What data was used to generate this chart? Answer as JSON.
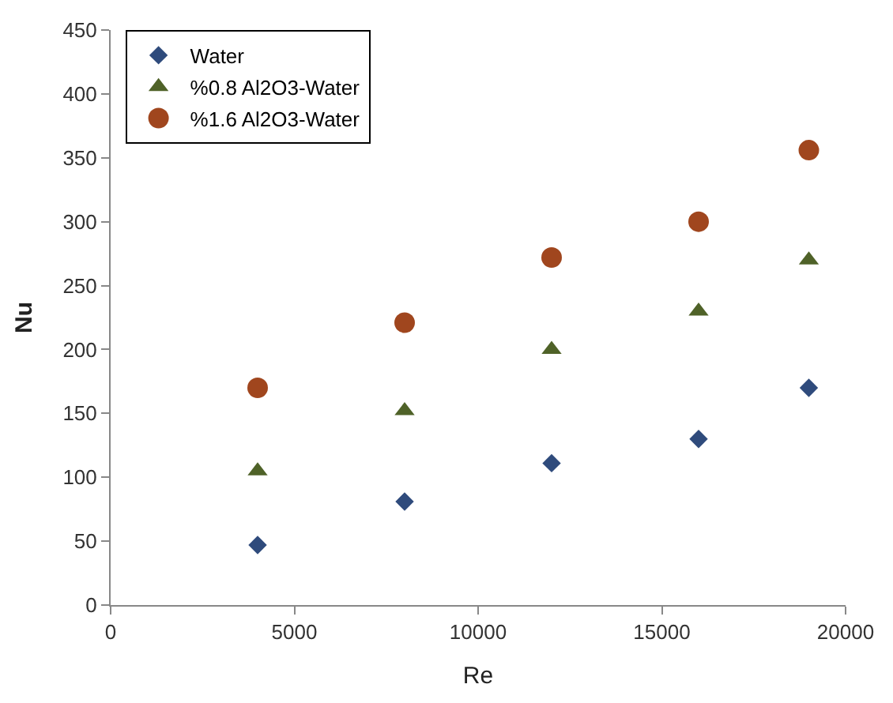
{
  "chart_data": {
    "type": "scatter",
    "xlabel": "Re",
    "ylabel": "Nu",
    "x": [
      4000,
      8000,
      12000,
      16000,
      19000
    ],
    "series": [
      {
        "name": "Water",
        "color": "#2f4b7c",
        "marker": "diamond",
        "values": [
          47,
          81,
          111,
          130,
          170
        ]
      },
      {
        "name": "%0.8 Al2O3-Water",
        "color": "#4f6228",
        "marker": "triangle",
        "values": [
          105,
          152,
          200,
          230,
          270
        ]
      },
      {
        "name": "%1.6 Al2O3-Water",
        "color": "#a0461e",
        "marker": "circle",
        "values": [
          170,
          221,
          272,
          300,
          356
        ]
      }
    ],
    "xlim": [
      0,
      20000
    ],
    "xticks": [
      0,
      5000,
      10000,
      15000,
      20000
    ],
    "ylim": [
      0,
      450
    ],
    "yticks": [
      0,
      50,
      100,
      150,
      200,
      250,
      300,
      350,
      400,
      450
    ],
    "legend": "top left"
  }
}
